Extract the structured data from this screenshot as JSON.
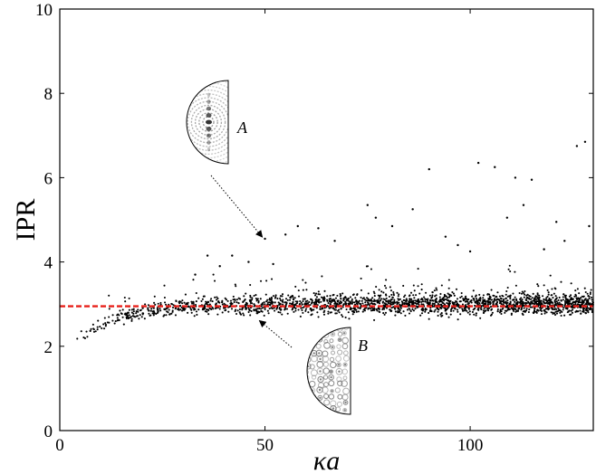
{
  "chart_data": {
    "type": "scatter",
    "title": "",
    "xlabel": "κa",
    "ylabel": "IPR",
    "xlim": [
      0,
      130
    ],
    "ylim": [
      0,
      10
    ],
    "xticks": [
      0,
      50,
      100
    ],
    "yticks": [
      0,
      2,
      4,
      6,
      8,
      10
    ],
    "grid": false,
    "reference_line": {
      "y": 2.95,
      "style": "dashed",
      "color": "#e8201a"
    },
    "marker_color": "#000000",
    "outliers": [
      {
        "x": 50,
        "y": 4.55
      },
      {
        "x": 55,
        "y": 4.65
      },
      {
        "x": 58,
        "y": 4.85
      },
      {
        "x": 63,
        "y": 4.8
      },
      {
        "x": 67,
        "y": 4.5
      },
      {
        "x": 75,
        "y": 5.35
      },
      {
        "x": 77,
        "y": 5.05
      },
      {
        "x": 81,
        "y": 4.85
      },
      {
        "x": 86,
        "y": 5.25
      },
      {
        "x": 90,
        "y": 6.2
      },
      {
        "x": 94,
        "y": 4.6
      },
      {
        "x": 97,
        "y": 4.4
      },
      {
        "x": 100,
        "y": 4.25
      },
      {
        "x": 102,
        "y": 6.35
      },
      {
        "x": 106,
        "y": 6.25
      },
      {
        "x": 109,
        "y": 5.05
      },
      {
        "x": 111,
        "y": 6.0
      },
      {
        "x": 113,
        "y": 5.35
      },
      {
        "x": 115,
        "y": 5.95
      },
      {
        "x": 118,
        "y": 4.3
      },
      {
        "x": 121,
        "y": 4.95
      },
      {
        "x": 123,
        "y": 4.5
      },
      {
        "x": 126,
        "y": 6.75
      },
      {
        "x": 128,
        "y": 6.85
      },
      {
        "x": 129,
        "y": 4.85
      },
      {
        "x": 36,
        "y": 4.15
      },
      {
        "x": 42,
        "y": 4.15
      },
      {
        "x": 46,
        "y": 4.0
      },
      {
        "x": 33,
        "y": 3.7
      },
      {
        "x": 39,
        "y": 3.9
      },
      {
        "x": 52,
        "y": 3.95
      }
    ],
    "dense_band": {
      "x_range": [
        4,
        130
      ],
      "approx_points": 2200,
      "mean_ipr": 2.95,
      "low_x_trend_start_y": 2.2,
      "description_values_only": true
    },
    "insets": [
      {
        "label": "A",
        "points_to": {
          "x": 50,
          "y": 4.55
        },
        "pattern": "whispering-gallery"
      },
      {
        "label": "B",
        "points_to": {
          "x": 48,
          "y": 2.65
        },
        "pattern": "random"
      }
    ]
  }
}
